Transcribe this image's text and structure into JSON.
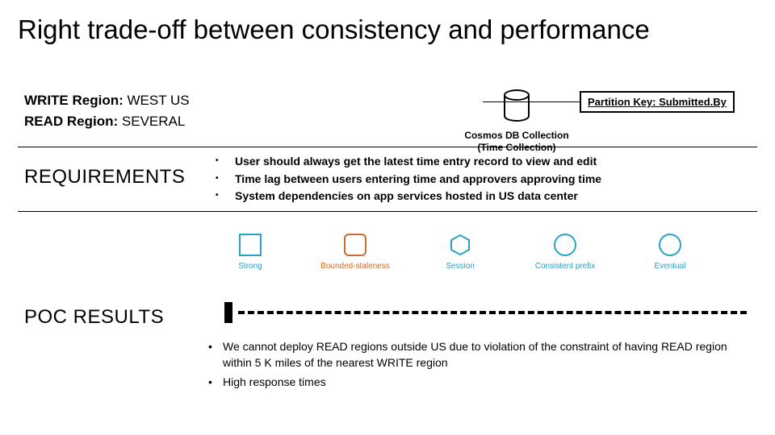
{
  "title": "Right trade-off between consistency and performance",
  "regions": {
    "write_label": "WRITE Region: ",
    "write_value": "WEST US",
    "read_label": "READ Region: ",
    "read_value": "SEVERAL"
  },
  "db": {
    "label_line1": "Cosmos DB Collection",
    "label_line2": "(Time Collection)",
    "icon_stroke": "#000000"
  },
  "partition_key": {
    "text": "Partition Key: Submitted.By"
  },
  "requirements": {
    "heading": "REQUIREMENTS",
    "items": [
      "User should always get the latest time entry record to view and edit",
      "Time lag between users entering time and approvers approving time",
      "System dependencies on app services hosted in US data center"
    ]
  },
  "consistency": {
    "levels": [
      {
        "name": "Strong",
        "shape": "square",
        "color": "#2aa0c8"
      },
      {
        "name": "Bounded-staleness",
        "shape": "rsquare",
        "color": "#d06a2a"
      },
      {
        "name": "Session",
        "shape": "hex",
        "color": "#2aa0c8"
      },
      {
        "name": "Consistent prefix",
        "shape": "circle",
        "color": "#2aa0c8"
      },
      {
        "name": "Eventual",
        "shape": "circle",
        "color": "#2aa0c8"
      }
    ],
    "label_color": "#2aa0c8",
    "label_color_alt": "#d06a2a"
  },
  "poc": {
    "heading": "POC RESULTS",
    "slider": {
      "pin_color": "#000000",
      "track_color": "#000000"
    },
    "items": [
      "We cannot deploy READ regions outside US due to violation of the constraint of having READ region within 5 K miles of the nearest WRITE region",
      "High response times"
    ]
  },
  "colors": {
    "text": "#000000",
    "background": "#ffffff",
    "accent_blue": "#2aa0c8",
    "accent_orange": "#d06a2a"
  }
}
